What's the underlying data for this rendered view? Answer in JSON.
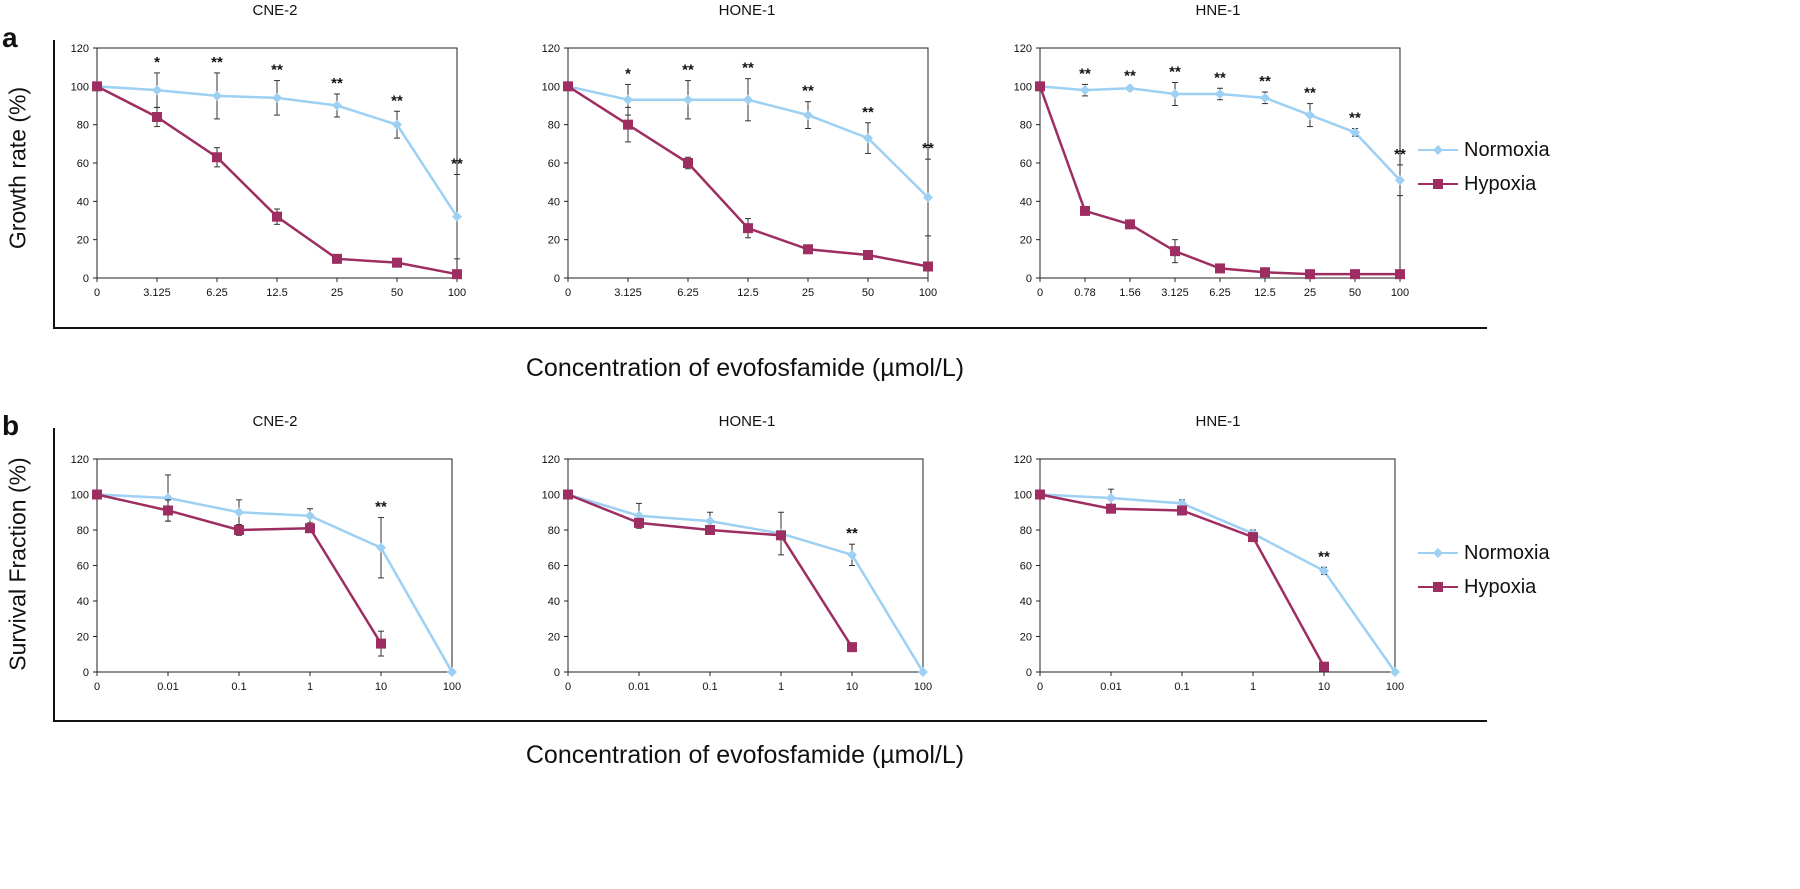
{
  "panels": [
    {
      "letter": "a",
      "ylabel": "Growth rate (%)",
      "xlabel": "Concentration of evofosfamide (µmol/L)",
      "legend": [
        {
          "name": "Normoxia",
          "color": "#9dd0f3",
          "marker": "diamond"
        },
        {
          "name": "Hypoxia",
          "color": "#9e2e62",
          "marker": "square"
        }
      ]
    },
    {
      "letter": "b",
      "ylabel": "Survival Fraction (%)",
      "xlabel": "Concentration of evofosfamide (µmol/L)",
      "legend": [
        {
          "name": "Normoxia",
          "color": "#9dd0f3",
          "marker": "diamond"
        },
        {
          "name": "Hypoxia",
          "color": "#9e2e62",
          "marker": "square"
        }
      ]
    }
  ],
  "chart_data": [
    {
      "type": "line",
      "panel": "a",
      "title": "CNE-2",
      "categories": [
        "0",
        "3.125",
        "6.25",
        "12.5",
        "25",
        "50",
        "100"
      ],
      "ylim": [
        0,
        120
      ],
      "yticks": [
        0,
        20,
        40,
        60,
        80,
        100,
        120
      ],
      "grid": false,
      "series": [
        {
          "name": "Normoxia",
          "color": "#9dd0f3",
          "marker": "diamond",
          "values": [
            100,
            98,
            95,
            94,
            90,
            80,
            32
          ],
          "errors": [
            0,
            9,
            12,
            9,
            6,
            7,
            22
          ]
        },
        {
          "name": "Hypoxia",
          "color": "#9e2e62",
          "marker": "square",
          "values": [
            100,
            84,
            63,
            32,
            10,
            8,
            2
          ],
          "errors": [
            0,
            5,
            5,
            4,
            1,
            1,
            1
          ]
        }
      ],
      "annotations": [
        "",
        "*",
        "**",
        "**",
        "**",
        "**",
        "**"
      ]
    },
    {
      "type": "line",
      "panel": "a",
      "title": "HONE-1",
      "categories": [
        "0",
        "3.125",
        "6.25",
        "12.5",
        "25",
        "50",
        "100"
      ],
      "ylim": [
        0,
        120
      ],
      "yticks": [
        0,
        20,
        40,
        60,
        80,
        100,
        120
      ],
      "grid": false,
      "series": [
        {
          "name": "Normoxia",
          "color": "#9dd0f3",
          "marker": "diamond",
          "values": [
            100,
            93,
            93,
            93,
            85,
            73,
            42
          ],
          "errors": [
            0,
            8,
            10,
            11,
            7,
            8,
            20
          ]
        },
        {
          "name": "Hypoxia",
          "color": "#9e2e62",
          "marker": "square",
          "values": [
            100,
            80,
            60,
            26,
            15,
            12,
            6
          ],
          "errors": [
            0,
            9,
            3,
            5,
            1,
            1,
            1
          ]
        }
      ],
      "annotations": [
        "",
        "*",
        "**",
        "**",
        "**",
        "**",
        "**"
      ]
    },
    {
      "type": "line",
      "panel": "a",
      "title": "HNE-1",
      "categories": [
        "0",
        "0.78",
        "1.56",
        "3.125",
        "6.25",
        "12.5",
        "25",
        "50",
        "100"
      ],
      "ylim": [
        0,
        120
      ],
      "yticks": [
        0,
        20,
        40,
        60,
        80,
        100,
        120
      ],
      "grid": false,
      "series": [
        {
          "name": "Normoxia",
          "color": "#9dd0f3",
          "marker": "diamond",
          "values": [
            100,
            98,
            99,
            96,
            96,
            94,
            85,
            76,
            51
          ],
          "errors": [
            0,
            3,
            1,
            6,
            3,
            3,
            6,
            2,
            8
          ]
        },
        {
          "name": "Hypoxia",
          "color": "#9e2e62",
          "marker": "square",
          "values": [
            100,
            35,
            28,
            14,
            5,
            3,
            2,
            2,
            2
          ],
          "errors": [
            0,
            1,
            2,
            6,
            2,
            1,
            1,
            1,
            1
          ]
        }
      ],
      "annotations": [
        "",
        "**",
        "**",
        "**",
        "**",
        "**",
        "**",
        "**",
        "**"
      ]
    },
    {
      "type": "line",
      "panel": "b",
      "title": "CNE-2",
      "categories": [
        "0",
        "0.01",
        "0.1",
        "1",
        "10",
        "100"
      ],
      "ylim": [
        0,
        120
      ],
      "yticks": [
        0,
        20,
        40,
        60,
        80,
        100,
        120
      ],
      "grid": false,
      "series": [
        {
          "name": "Normoxia",
          "color": "#9dd0f3",
          "marker": "diamond",
          "values": [
            100,
            98,
            90,
            88,
            70,
            0
          ],
          "errors": [
            0,
            13,
            7,
            4,
            17,
            0
          ]
        },
        {
          "name": "Hypoxia",
          "color": "#9e2e62",
          "marker": "square",
          "values": [
            100,
            91,
            80,
            81,
            16,
            null
          ],
          "errors": [
            0,
            6,
            3,
            2,
            7,
            0
          ]
        }
      ],
      "annotations": [
        "",
        "",
        "",
        "",
        "**",
        ""
      ]
    },
    {
      "type": "line",
      "panel": "b",
      "title": "HONE-1",
      "categories": [
        "0",
        "0.01",
        "0.1",
        "1",
        "10",
        "100"
      ],
      "ylim": [
        0,
        120
      ],
      "yticks": [
        0,
        20,
        40,
        60,
        80,
        100,
        120
      ],
      "grid": false,
      "series": [
        {
          "name": "Normoxia",
          "color": "#9dd0f3",
          "marker": "diamond",
          "values": [
            100,
            88,
            85,
            78,
            66,
            0
          ],
          "errors": [
            0,
            7,
            5,
            12,
            6,
            0
          ]
        },
        {
          "name": "Hypoxia",
          "color": "#9e2e62",
          "marker": "square",
          "values": [
            100,
            84,
            80,
            77,
            14,
            null
          ],
          "errors": [
            0,
            2,
            2,
            2,
            1,
            0
          ]
        }
      ],
      "annotations": [
        "",
        "",
        "",
        "",
        "**",
        ""
      ]
    },
    {
      "type": "line",
      "panel": "b",
      "title": "HNE-1",
      "categories": [
        "0",
        "0.01",
        "0.1",
        "1",
        "10",
        "100"
      ],
      "ylim": [
        0,
        120
      ],
      "yticks": [
        0,
        20,
        40,
        60,
        80,
        100,
        120
      ],
      "grid": false,
      "series": [
        {
          "name": "Normoxia",
          "color": "#9dd0f3",
          "marker": "diamond",
          "values": [
            100,
            98,
            95,
            78,
            57,
            0
          ],
          "errors": [
            0,
            5,
            2,
            2,
            2,
            0
          ]
        },
        {
          "name": "Hypoxia",
          "color": "#9e2e62",
          "marker": "square",
          "values": [
            100,
            92,
            91,
            76,
            3,
            null
          ],
          "errors": [
            0,
            1,
            2,
            2,
            0,
            0
          ]
        }
      ],
      "annotations": [
        "",
        "",
        "",
        "",
        "**",
        ""
      ]
    }
  ]
}
